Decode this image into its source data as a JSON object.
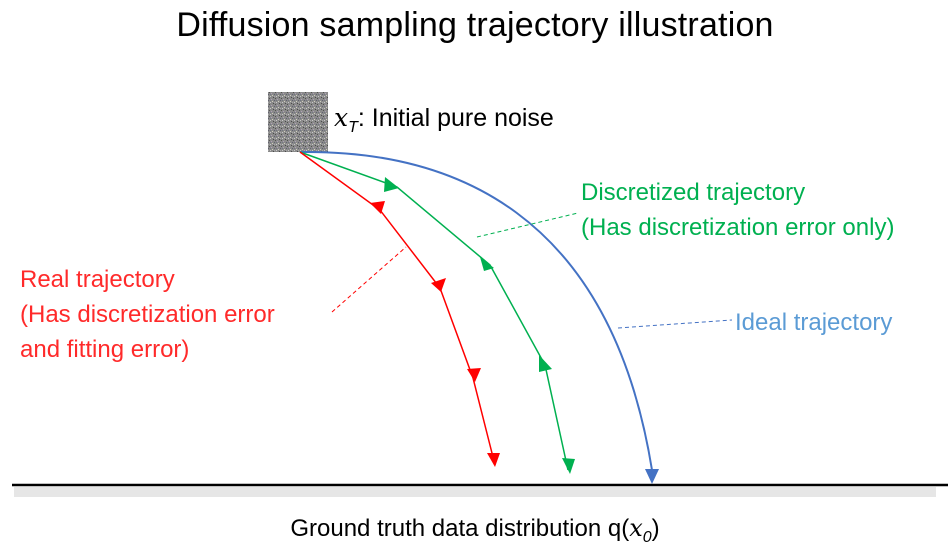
{
  "title": "Diffusion sampling trajectory illustration",
  "noise": {
    "symbol": "x",
    "subscript": "T",
    "label": ": Initial pure noise"
  },
  "real": {
    "line1": "Real trajectory",
    "line2": "(Has discretization error",
    "line3": "and fitting error)",
    "color": "#ff0000"
  },
  "discretized": {
    "line1": "Discretized trajectory",
    "line2": "(Has discretization error only)",
    "color": "#00b050"
  },
  "ideal": {
    "label": "Ideal trajectory",
    "color": "#4472c4"
  },
  "ground_truth": {
    "prefix": "Ground truth data distribution q(",
    "symbol": "x",
    "subscript": "0",
    "suffix": ")"
  }
}
